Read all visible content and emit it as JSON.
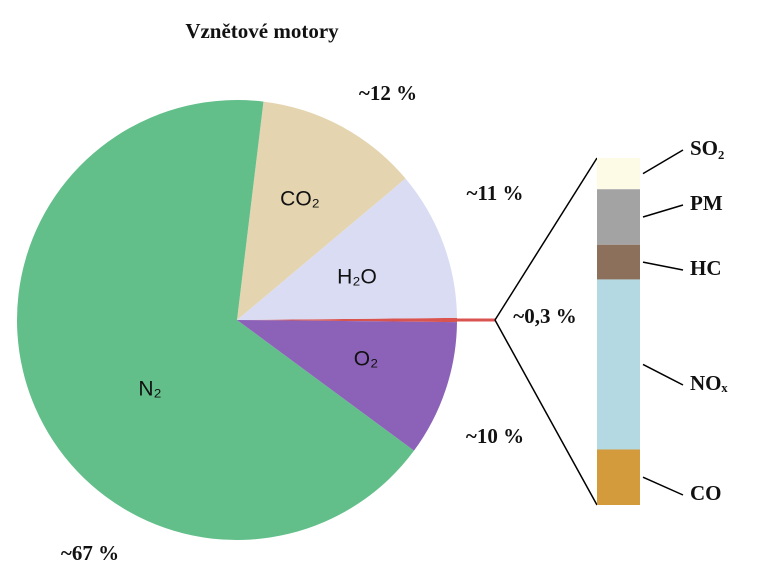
{
  "chart_data": {
    "type": "pie",
    "title": "Vznětové motory",
    "categories": [
      null,
      "H₂O",
      "CO₂",
      "N₂",
      "O₂"
    ],
    "values": [
      0.3,
      11,
      12,
      67,
      10
    ],
    "value_labels": [
      "~0,3 %",
      "~11 %",
      "~12 %",
      "~67 %",
      "~10 %"
    ],
    "colors": [
      "#d9534f",
      "#d9dcf3",
      "#e4d5b0",
      "#62bf8a",
      "#8c62b8"
    ],
    "breakout": {
      "type": "stacked-bar",
      "categories": [
        "SO₂",
        "PM",
        "HC",
        "NOₓ",
        "CO"
      ],
      "values": [
        9,
        16,
        10,
        49,
        16
      ],
      "colors": [
        "#fdfbe6",
        "#a3a3a3",
        "#8d705b",
        "#b4d9e2",
        "#d39b3c"
      ]
    }
  }
}
